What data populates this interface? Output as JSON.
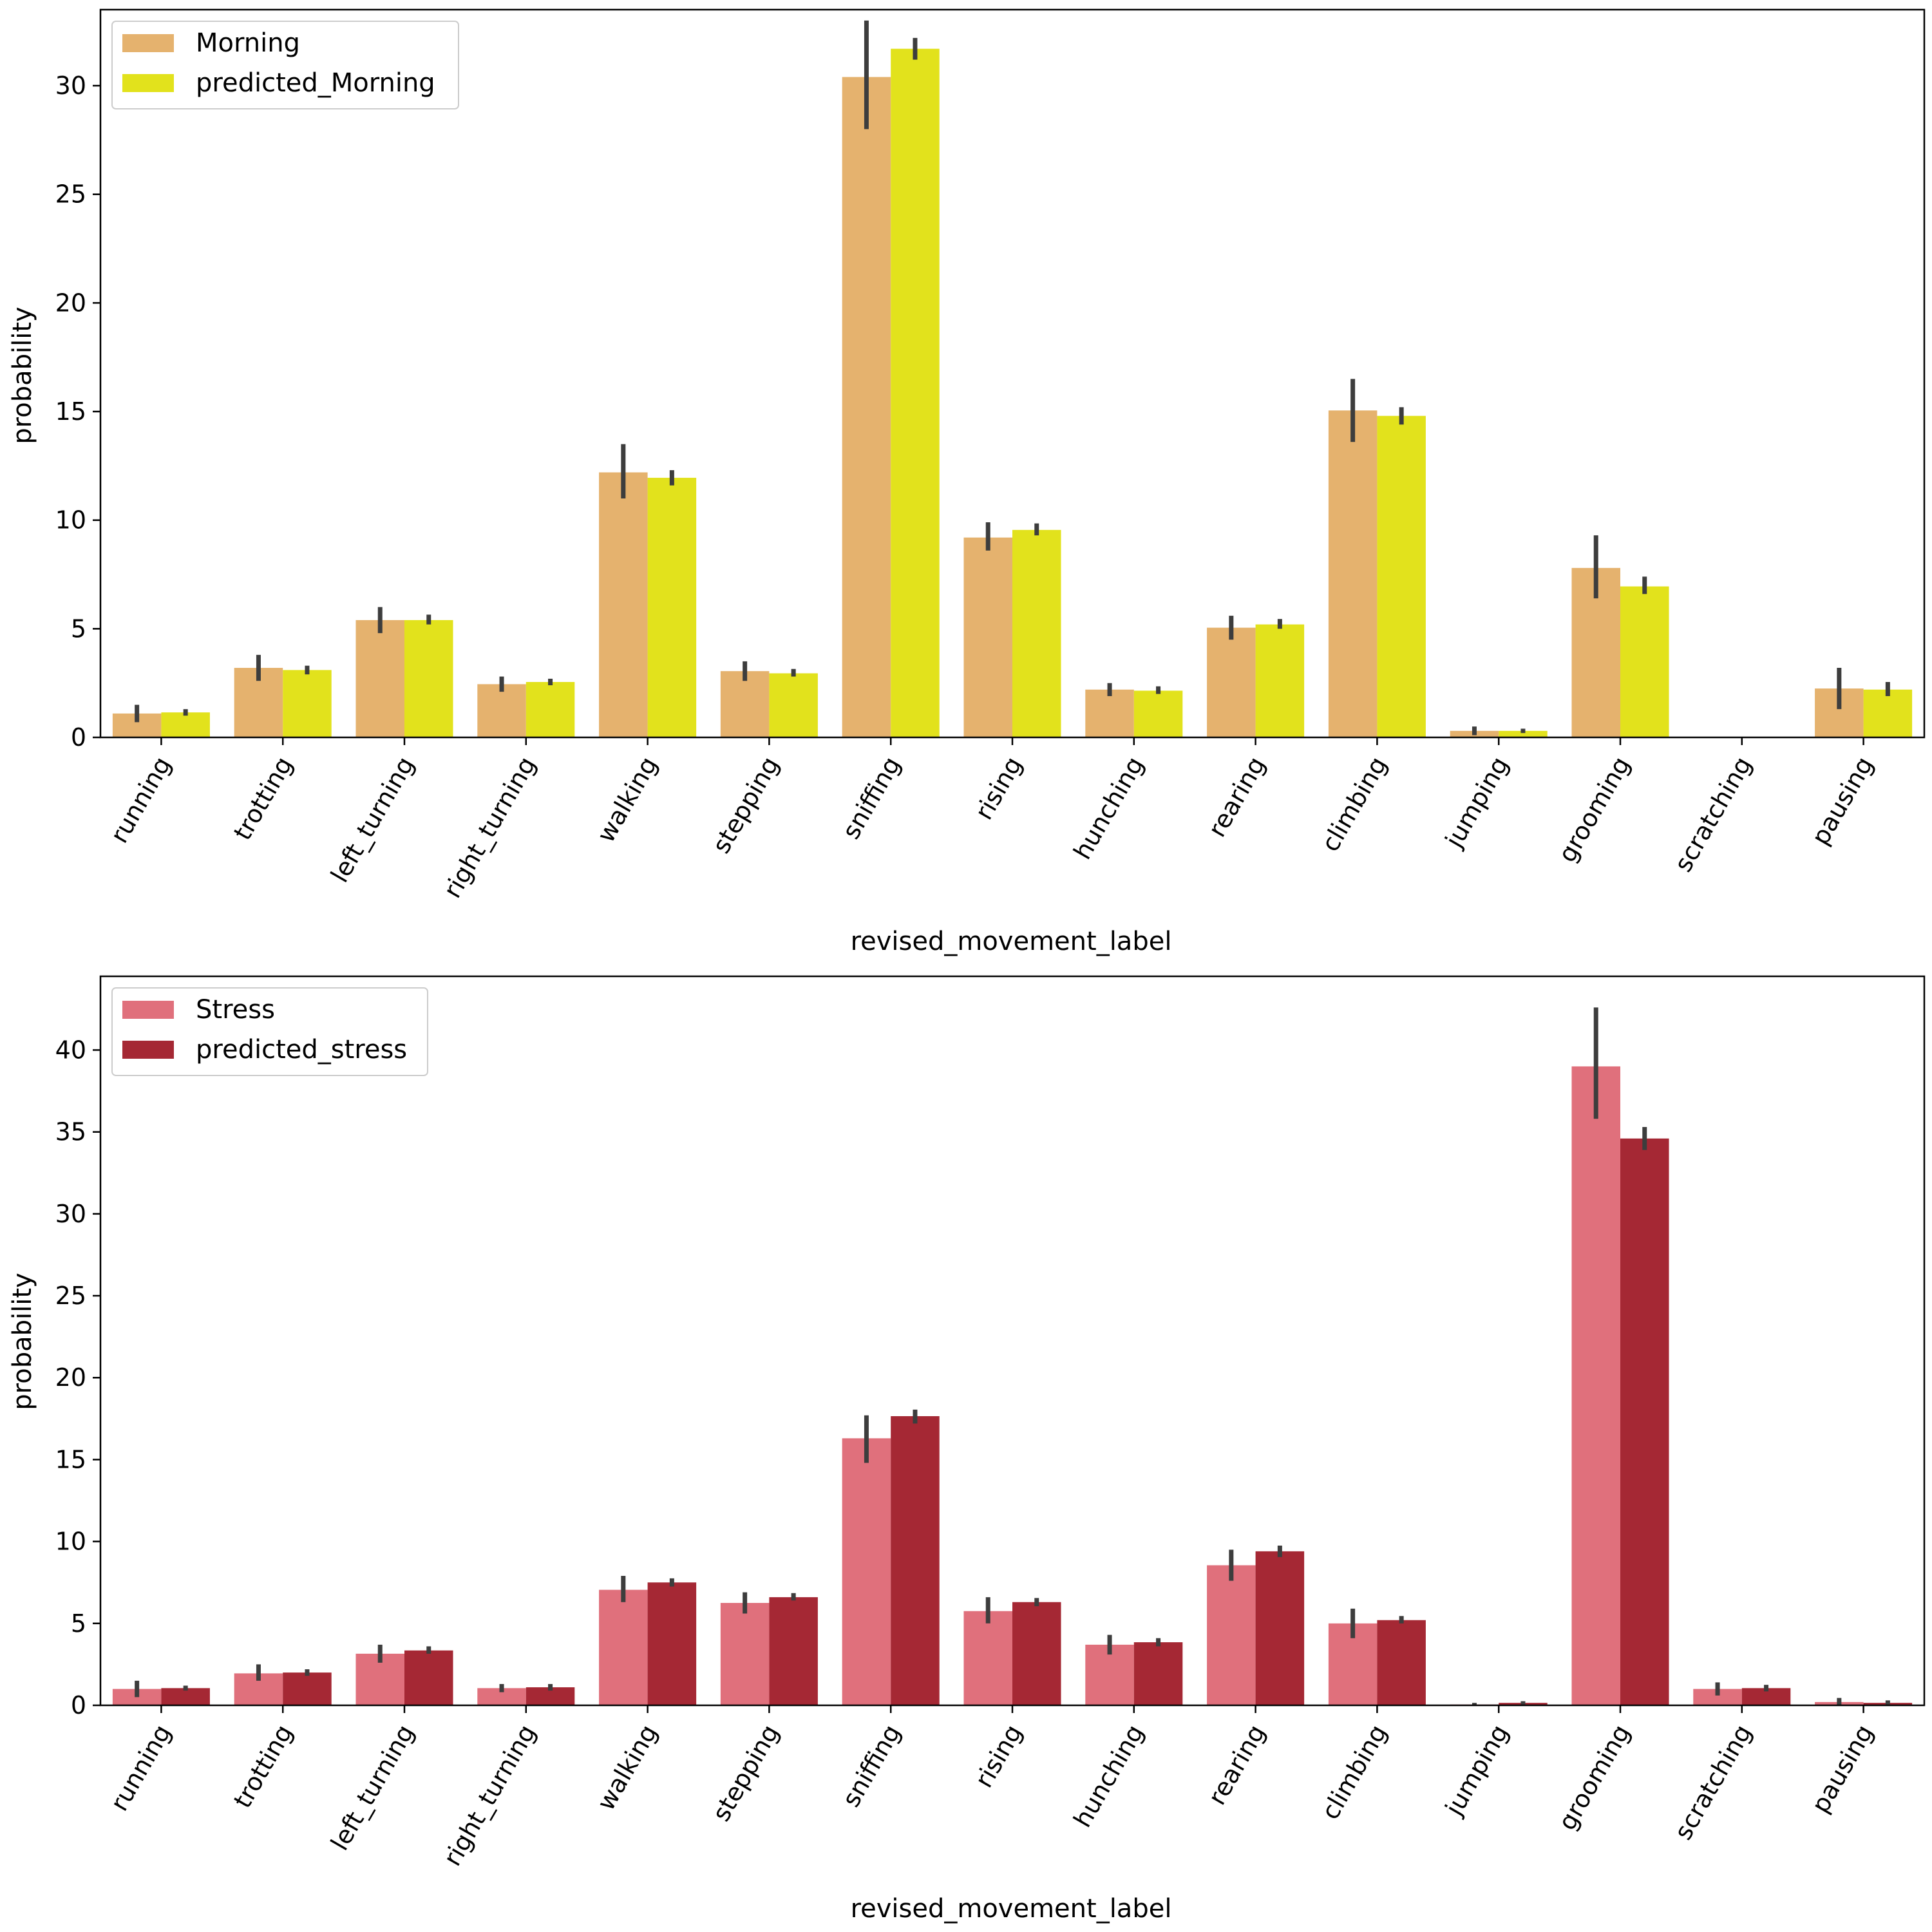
{
  "figure": {
    "panels": [
      {
        "legend_placement": "top-left",
        "colors": {
          "actual": "#e5b26e",
          "predicted": "#e2e21c",
          "errorbar": "#3d3d3d"
        }
      },
      {
        "legend_placement": "top-left",
        "colors": {
          "actual": "#e0707c",
          "predicted": "#a52834",
          "errorbar": "#3d3d3d"
        }
      }
    ]
  },
  "chart_data": [
    {
      "type": "bar",
      "xlabel": "revised_movement_label",
      "ylabel": "probability",
      "ylim": [
        0,
        33.5
      ],
      "yticks": [
        0,
        5,
        10,
        15,
        20,
        25,
        30
      ],
      "grid": false,
      "categories": [
        "running",
        "trotting",
        "left_turning",
        "right_turning",
        "walking",
        "stepping",
        "sniffing",
        "rising",
        "hunching",
        "rearing",
        "climbing",
        "jumping",
        "grooming",
        "scratching",
        "pausing"
      ],
      "series": [
        {
          "name": "Morning",
          "values": [
            1.1,
            3.2,
            5.4,
            2.45,
            12.2,
            3.05,
            30.4,
            9.2,
            2.2,
            5.05,
            15.05,
            0.3,
            7.8,
            0.0,
            2.25
          ],
          "error_low": [
            0.7,
            2.6,
            4.8,
            2.1,
            11.0,
            2.6,
            28.0,
            8.6,
            1.9,
            4.5,
            13.6,
            0.1,
            6.4,
            0.0,
            1.3
          ],
          "error_high": [
            1.5,
            3.8,
            6.0,
            2.8,
            13.5,
            3.5,
            33.0,
            9.9,
            2.5,
            5.6,
            16.5,
            0.5,
            9.3,
            0.0,
            3.2
          ]
        },
        {
          "name": "predicted_Morning",
          "values": [
            1.15,
            3.1,
            5.4,
            2.55,
            11.95,
            2.95,
            31.7,
            9.55,
            2.15,
            5.2,
            14.8,
            0.3,
            6.95,
            0.0,
            2.2
          ],
          "error_low": [
            1.0,
            2.9,
            5.2,
            2.4,
            11.6,
            2.8,
            31.2,
            9.3,
            2.0,
            5.0,
            14.4,
            0.2,
            6.6,
            0.0,
            1.9
          ],
          "error_high": [
            1.3,
            3.3,
            5.65,
            2.7,
            12.3,
            3.15,
            32.2,
            9.85,
            2.35,
            5.45,
            15.2,
            0.4,
            7.4,
            0.0,
            2.55
          ]
        }
      ]
    },
    {
      "type": "bar",
      "xlabel": "revised_movement_label",
      "ylabel": "probability",
      "ylim": [
        0,
        44.5
      ],
      "yticks": [
        0,
        5,
        10,
        15,
        20,
        25,
        30,
        35,
        40
      ],
      "grid": false,
      "categories": [
        "running",
        "trotting",
        "left_turning",
        "right_turning",
        "walking",
        "stepping",
        "sniffing",
        "rising",
        "hunching",
        "rearing",
        "climbing",
        "jumping",
        "grooming",
        "scratching",
        "pausing"
      ],
      "series": [
        {
          "name": "Stress",
          "values": [
            1.0,
            1.95,
            3.15,
            1.05,
            7.05,
            6.25,
            16.3,
            5.75,
            3.7,
            8.55,
            5.0,
            0.05,
            39.0,
            1.0,
            0.2
          ],
          "error_low": [
            0.5,
            1.5,
            2.6,
            0.8,
            6.3,
            5.6,
            14.8,
            5.0,
            3.1,
            7.6,
            4.1,
            0.0,
            35.8,
            0.6,
            0.0
          ],
          "error_high": [
            1.5,
            2.5,
            3.7,
            1.3,
            7.9,
            6.9,
            17.7,
            6.6,
            4.3,
            9.5,
            5.9,
            0.15,
            42.6,
            1.4,
            0.45
          ]
        },
        {
          "name": "predicted_stress",
          "values": [
            1.05,
            2.0,
            3.35,
            1.1,
            7.5,
            6.6,
            17.65,
            6.3,
            3.85,
            9.4,
            5.2,
            0.15,
            34.6,
            1.05,
            0.15
          ],
          "error_low": [
            0.9,
            1.8,
            3.15,
            0.9,
            7.25,
            6.4,
            17.2,
            6.05,
            3.6,
            9.05,
            5.0,
            0.05,
            33.9,
            0.85,
            0.05
          ],
          "error_high": [
            1.2,
            2.2,
            3.6,
            1.3,
            7.75,
            6.85,
            18.05,
            6.55,
            4.1,
            9.75,
            5.45,
            0.25,
            35.3,
            1.25,
            0.3
          ]
        }
      ]
    }
  ]
}
